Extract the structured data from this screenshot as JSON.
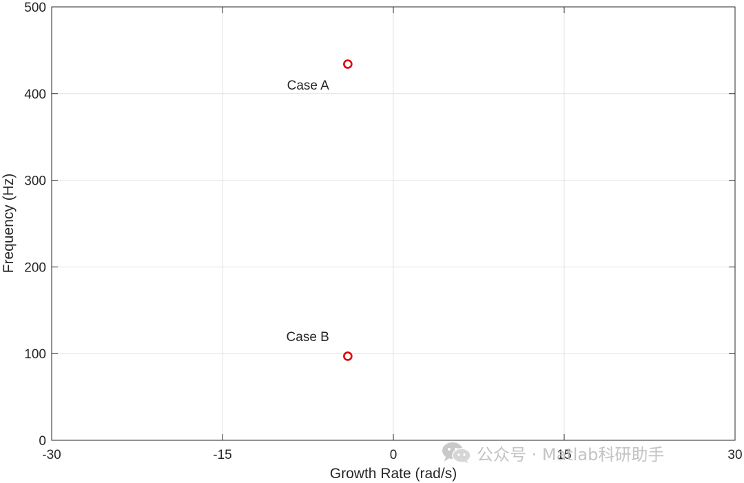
{
  "chart_data": {
    "type": "scatter",
    "title": "",
    "xlabel": "Growth Rate (rad/s)",
    "ylabel": "Frequency (Hz)",
    "xlim": [
      -30,
      30
    ],
    "ylim": [
      0,
      500
    ],
    "xticks": [
      -30,
      -15,
      0,
      15,
      30
    ],
    "yticks": [
      0,
      100,
      200,
      300,
      400,
      500
    ],
    "grid": true,
    "marker": "open-circle",
    "series": [
      {
        "points": [
          {
            "x": -4,
            "y": 434,
            "label": "Case A"
          },
          {
            "x": -4,
            "y": 97,
            "label": "Case B"
          }
        ]
      }
    ]
  },
  "colors": {
    "marker": "#e00000",
    "grid": "#e1e1e1",
    "axes": "#262626",
    "watermark": "#bdbdbd"
  },
  "watermark": {
    "icon": "wechat-icon",
    "text": "公众号 · Matlab科研助手"
  }
}
